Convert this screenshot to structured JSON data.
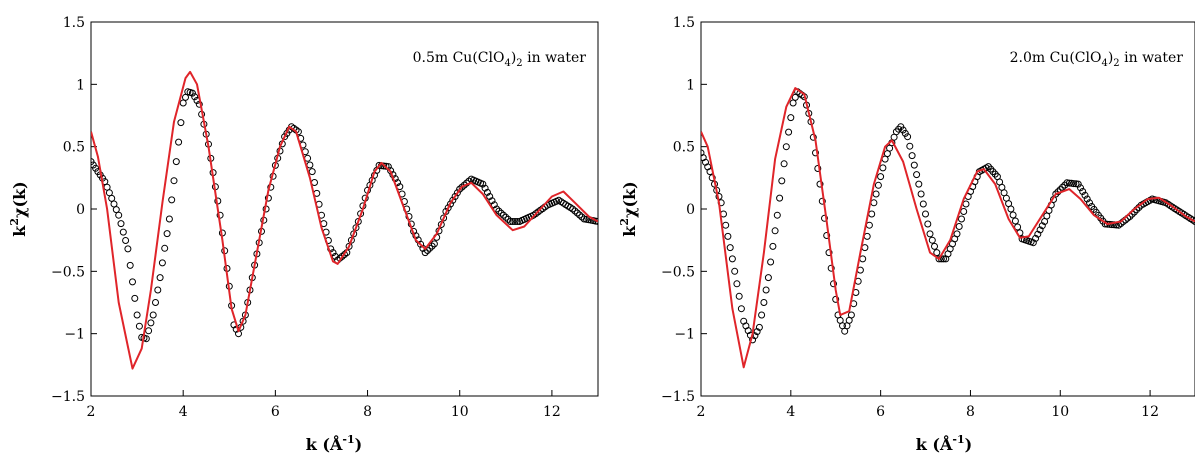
{
  "chart_data": [
    {
      "type": "line",
      "annotation": {
        "prefix": "0.5m Cu(ClO",
        "sub1": "4",
        "mid": ")",
        "sub2": "2",
        "suffix": " in water"
      },
      "xlabel": {
        "main": "k (Å",
        "sup": "-1",
        "close": ")"
      },
      "ylabel": {
        "pre": "k",
        "sup": "2",
        "post": "χ(k)"
      },
      "xlim": [
        2,
        13
      ],
      "ylim": [
        -1.5,
        1.5
      ],
      "xticks": [
        2,
        4,
        6,
        8,
        10,
        12
      ],
      "yticks": [
        -1.5,
        -1,
        -0.5,
        0,
        0.5,
        1,
        1.5
      ],
      "xtick_labels": [
        "2",
        "4",
        "6",
        "8",
        "10",
        "12"
      ],
      "ytick_labels": [
        "−1.5",
        "−1",
        "−0.5",
        "0",
        "0.5",
        "1",
        "1.5"
      ],
      "series": [
        {
          "style": "open-circles",
          "color": "#000000",
          "points": [
            [
              2.0,
              0.38
            ],
            [
              2.3,
              0.22
            ],
            [
              2.6,
              -0.05
            ],
            [
              2.8,
              -0.32
            ],
            [
              3.0,
              -0.85
            ],
            [
              3.1,
              -1.03
            ],
            [
              3.2,
              -1.04
            ],
            [
              3.35,
              -0.85
            ],
            [
              3.5,
              -0.55
            ],
            [
              3.7,
              -0.08
            ],
            [
              3.85,
              0.38
            ],
            [
              4.0,
              0.85
            ],
            [
              4.1,
              0.94
            ],
            [
              4.2,
              0.93
            ],
            [
              4.35,
              0.84
            ],
            [
              4.55,
              0.52
            ],
            [
              4.8,
              -0.05
            ],
            [
              5.0,
              -0.62
            ],
            [
              5.1,
              -0.93
            ],
            [
              5.2,
              -1.0
            ],
            [
              5.35,
              -0.85
            ],
            [
              5.55,
              -0.45
            ],
            [
              5.8,
              0.0
            ],
            [
              6.0,
              0.35
            ],
            [
              6.2,
              0.58
            ],
            [
              6.35,
              0.66
            ],
            [
              6.5,
              0.62
            ],
            [
              6.8,
              0.3
            ],
            [
              7.0,
              -0.05
            ],
            [
              7.2,
              -0.32
            ],
            [
              7.35,
              -0.41
            ],
            [
              7.55,
              -0.35
            ],
            [
              7.8,
              -0.1
            ],
            [
              8.0,
              0.15
            ],
            [
              8.25,
              0.35
            ],
            [
              8.45,
              0.34
            ],
            [
              8.7,
              0.18
            ],
            [
              9.0,
              -0.18
            ],
            [
              9.25,
              -0.35
            ],
            [
              9.45,
              -0.28
            ],
            [
              9.7,
              -0.02
            ],
            [
              10.0,
              0.16
            ],
            [
              10.25,
              0.24
            ],
            [
              10.5,
              0.2
            ],
            [
              10.8,
              0.0
            ],
            [
              11.1,
              -0.1
            ],
            [
              11.3,
              -0.1
            ],
            [
              11.6,
              -0.05
            ],
            [
              11.9,
              0.03
            ],
            [
              12.15,
              0.07
            ],
            [
              12.45,
              0.0
            ],
            [
              12.7,
              -0.08
            ],
            [
              13.0,
              -0.1
            ]
          ]
        },
        {
          "style": "line",
          "color": "#e0252a",
          "points": [
            [
              2.0,
              0.62
            ],
            [
              2.15,
              0.42
            ],
            [
              2.35,
              0.0
            ],
            [
              2.6,
              -0.75
            ],
            [
              2.9,
              -1.28
            ],
            [
              3.1,
              -1.12
            ],
            [
              3.3,
              -0.65
            ],
            [
              3.55,
              0.05
            ],
            [
              3.8,
              0.7
            ],
            [
              4.05,
              1.05
            ],
            [
              4.15,
              1.1
            ],
            [
              4.3,
              1.0
            ],
            [
              4.55,
              0.5
            ],
            [
              4.85,
              -0.25
            ],
            [
              5.05,
              -0.8
            ],
            [
              5.2,
              -0.98
            ],
            [
              5.35,
              -0.85
            ],
            [
              5.6,
              -0.35
            ],
            [
              5.85,
              0.15
            ],
            [
              6.1,
              0.5
            ],
            [
              6.3,
              0.66
            ],
            [
              6.45,
              0.62
            ],
            [
              6.75,
              0.25
            ],
            [
              7.0,
              -0.15
            ],
            [
              7.25,
              -0.42
            ],
            [
              7.35,
              -0.44
            ],
            [
              7.6,
              -0.3
            ],
            [
              7.9,
              0.0
            ],
            [
              8.15,
              0.3
            ],
            [
              8.3,
              0.37
            ],
            [
              8.5,
              0.3
            ],
            [
              8.8,
              0.0
            ],
            [
              9.05,
              -0.25
            ],
            [
              9.25,
              -0.32
            ],
            [
              9.5,
              -0.2
            ],
            [
              9.8,
              0.05
            ],
            [
              10.05,
              0.18
            ],
            [
              10.25,
              0.21
            ],
            [
              10.5,
              0.12
            ],
            [
              10.8,
              -0.05
            ],
            [
              11.15,
              -0.17
            ],
            [
              11.4,
              -0.14
            ],
            [
              11.7,
              -0.02
            ],
            [
              12.0,
              0.1
            ],
            [
              12.25,
              0.14
            ],
            [
              12.5,
              0.05
            ],
            [
              12.8,
              -0.06
            ],
            [
              13.0,
              -0.1
            ]
          ]
        }
      ]
    },
    {
      "type": "line",
      "annotation": {
        "prefix": "2.0m Cu(ClO",
        "sub1": "4",
        "mid": ")",
        "sub2": "2",
        "suffix": " in water"
      },
      "xlabel": {
        "main": "k (Å",
        "sup": "-1",
        "close": ")"
      },
      "ylabel": {
        "pre": "k",
        "sup": "2",
        "post": "χ(k)"
      },
      "xlim": [
        2,
        13
      ],
      "ylim": [
        -1.5,
        1.5
      ],
      "xticks": [
        2,
        4,
        6,
        8,
        10,
        12
      ],
      "yticks": [
        -1.5,
        -1,
        -0.5,
        0,
        0.5,
        1,
        1.5
      ],
      "xtick_labels": [
        "2",
        "4",
        "6",
        "8",
        "10",
        "12"
      ],
      "ytick_labels": [
        "−1.5",
        "−1",
        "−0.5",
        "0",
        "0.5",
        "1",
        "1.5"
      ],
      "series": [
        {
          "style": "open-circles",
          "color": "#000000",
          "points": [
            [
              2.0,
              0.45
            ],
            [
              2.2,
              0.3
            ],
            [
              2.45,
              0.05
            ],
            [
              2.7,
              -0.4
            ],
            [
              2.95,
              -0.9
            ],
            [
              3.15,
              -1.05
            ],
            [
              3.3,
              -0.95
            ],
            [
              3.5,
              -0.55
            ],
            [
              3.7,
              -0.05
            ],
            [
              3.9,
              0.5
            ],
            [
              4.05,
              0.85
            ],
            [
              4.15,
              0.94
            ],
            [
              4.3,
              0.9
            ],
            [
              4.45,
              0.7
            ],
            [
              4.65,
              0.2
            ],
            [
              4.85,
              -0.35
            ],
            [
              5.05,
              -0.85
            ],
            [
              5.2,
              -0.98
            ],
            [
              5.35,
              -0.85
            ],
            [
              5.6,
              -0.4
            ],
            [
              5.85,
              0.05
            ],
            [
              6.1,
              0.4
            ],
            [
              6.35,
              0.62
            ],
            [
              6.45,
              0.66
            ],
            [
              6.6,
              0.58
            ],
            [
              6.85,
              0.2
            ],
            [
              7.1,
              -0.2
            ],
            [
              7.3,
              -0.4
            ],
            [
              7.45,
              -0.4
            ],
            [
              7.7,
              -0.2
            ],
            [
              7.95,
              0.1
            ],
            [
              8.2,
              0.3
            ],
            [
              8.4,
              0.34
            ],
            [
              8.6,
              0.26
            ],
            [
              8.9,
              0.0
            ],
            [
              9.15,
              -0.24
            ],
            [
              9.4,
              -0.27
            ],
            [
              9.65,
              -0.1
            ],
            [
              9.9,
              0.12
            ],
            [
              10.15,
              0.21
            ],
            [
              10.4,
              0.2
            ],
            [
              10.7,
              0.02
            ],
            [
              11.0,
              -0.12
            ],
            [
              11.3,
              -0.13
            ],
            [
              11.55,
              -0.06
            ],
            [
              11.8,
              0.03
            ],
            [
              12.05,
              0.08
            ],
            [
              12.35,
              0.05
            ],
            [
              12.65,
              -0.02
            ],
            [
              13.0,
              -0.1
            ]
          ]
        },
        {
          "style": "line",
          "color": "#e0252a",
          "points": [
            [
              2.0,
              0.62
            ],
            [
              2.15,
              0.5
            ],
            [
              2.4,
              0.05
            ],
            [
              2.7,
              -0.8
            ],
            [
              2.95,
              -1.27
            ],
            [
              3.15,
              -1.0
            ],
            [
              3.4,
              -0.35
            ],
            [
              3.65,
              0.4
            ],
            [
              3.9,
              0.82
            ],
            [
              4.1,
              0.97
            ],
            [
              4.3,
              0.92
            ],
            [
              4.55,
              0.55
            ],
            [
              4.8,
              -0.1
            ],
            [
              5.0,
              -0.65
            ],
            [
              5.1,
              -0.85
            ],
            [
              5.3,
              -0.82
            ],
            [
              5.55,
              -0.35
            ],
            [
              5.85,
              0.2
            ],
            [
              6.1,
              0.5
            ],
            [
              6.25,
              0.55
            ],
            [
              6.5,
              0.38
            ],
            [
              6.8,
              0.0
            ],
            [
              7.1,
              -0.35
            ],
            [
              7.3,
              -0.4
            ],
            [
              7.55,
              -0.25
            ],
            [
              7.85,
              0.08
            ],
            [
              8.15,
              0.3
            ],
            [
              8.3,
              0.32
            ],
            [
              8.55,
              0.2
            ],
            [
              8.85,
              -0.08
            ],
            [
              9.1,
              -0.23
            ],
            [
              9.3,
              -0.22
            ],
            [
              9.6,
              -0.05
            ],
            [
              9.9,
              0.12
            ],
            [
              10.2,
              0.16
            ],
            [
              10.45,
              0.08
            ],
            [
              10.75,
              -0.05
            ],
            [
              11.05,
              -0.12
            ],
            [
              11.35,
              -0.1
            ],
            [
              11.65,
              0.0
            ],
            [
              11.95,
              0.08
            ],
            [
              12.2,
              0.09
            ],
            [
              12.5,
              0.02
            ],
            [
              12.8,
              -0.06
            ],
            [
              13.0,
              -0.1
            ]
          ]
        }
      ]
    }
  ]
}
